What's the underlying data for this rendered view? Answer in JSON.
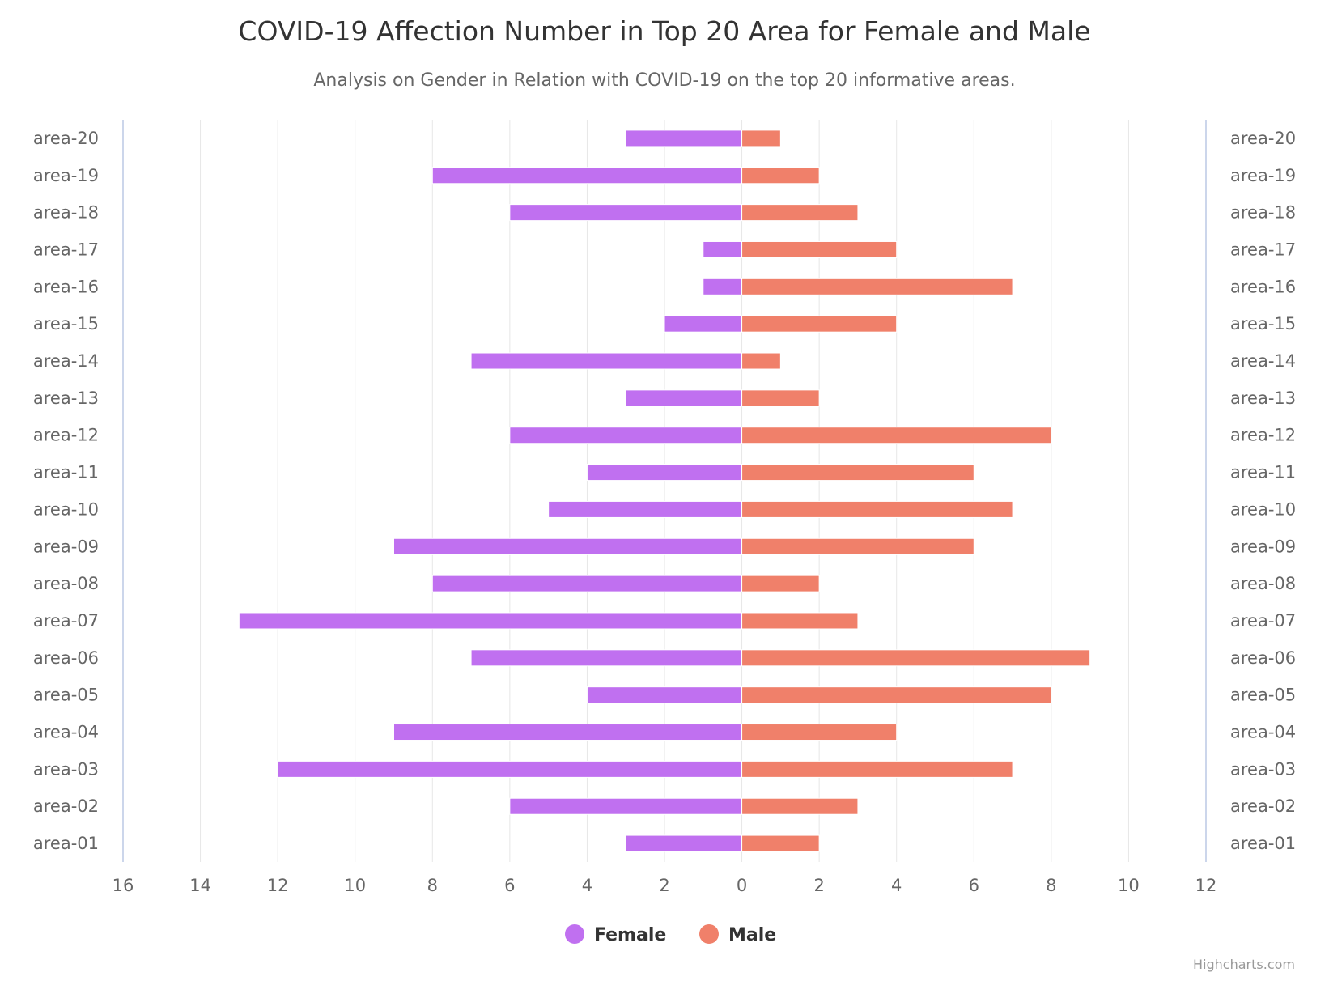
{
  "chart_data": {
    "type": "bar",
    "title": "COVID-19 Affection Number in Top 20 Area for Female and Male",
    "subtitle": "Analysis on Gender in Relation with COVID-19 on the top 20 informative areas.",
    "categories": [
      "area-01",
      "area-02",
      "area-03",
      "area-04",
      "area-05",
      "area-06",
      "area-07",
      "area-08",
      "area-09",
      "area-10",
      "area-11",
      "area-12",
      "area-13",
      "area-14",
      "area-15",
      "area-16",
      "area-17",
      "area-18",
      "area-19",
      "area-20"
    ],
    "series": [
      {
        "name": "Female",
        "color": "#c070f0",
        "direction": "left",
        "values": [
          3,
          6,
          12,
          9,
          4,
          7,
          13,
          8,
          9,
          5,
          4,
          6,
          3,
          7,
          2,
          1,
          1,
          6,
          8,
          3
        ]
      },
      {
        "name": "Male",
        "color": "#f0806a",
        "direction": "right",
        "values": [
          2,
          3,
          7,
          4,
          8,
          9,
          3,
          2,
          6,
          7,
          6,
          8,
          2,
          1,
          4,
          7,
          4,
          3,
          2,
          1
        ]
      }
    ],
    "x_ticks": [
      "16",
      "14",
      "12",
      "10",
      "8",
      "6",
      "4",
      "2",
      "0",
      "2",
      "4",
      "6",
      "8",
      "10",
      "12"
    ],
    "xlim": [
      -16,
      12
    ],
    "grid": true,
    "legend_position": "bottom-center",
    "category_order": "descending-top",
    "credits": "Highcharts.com"
  }
}
